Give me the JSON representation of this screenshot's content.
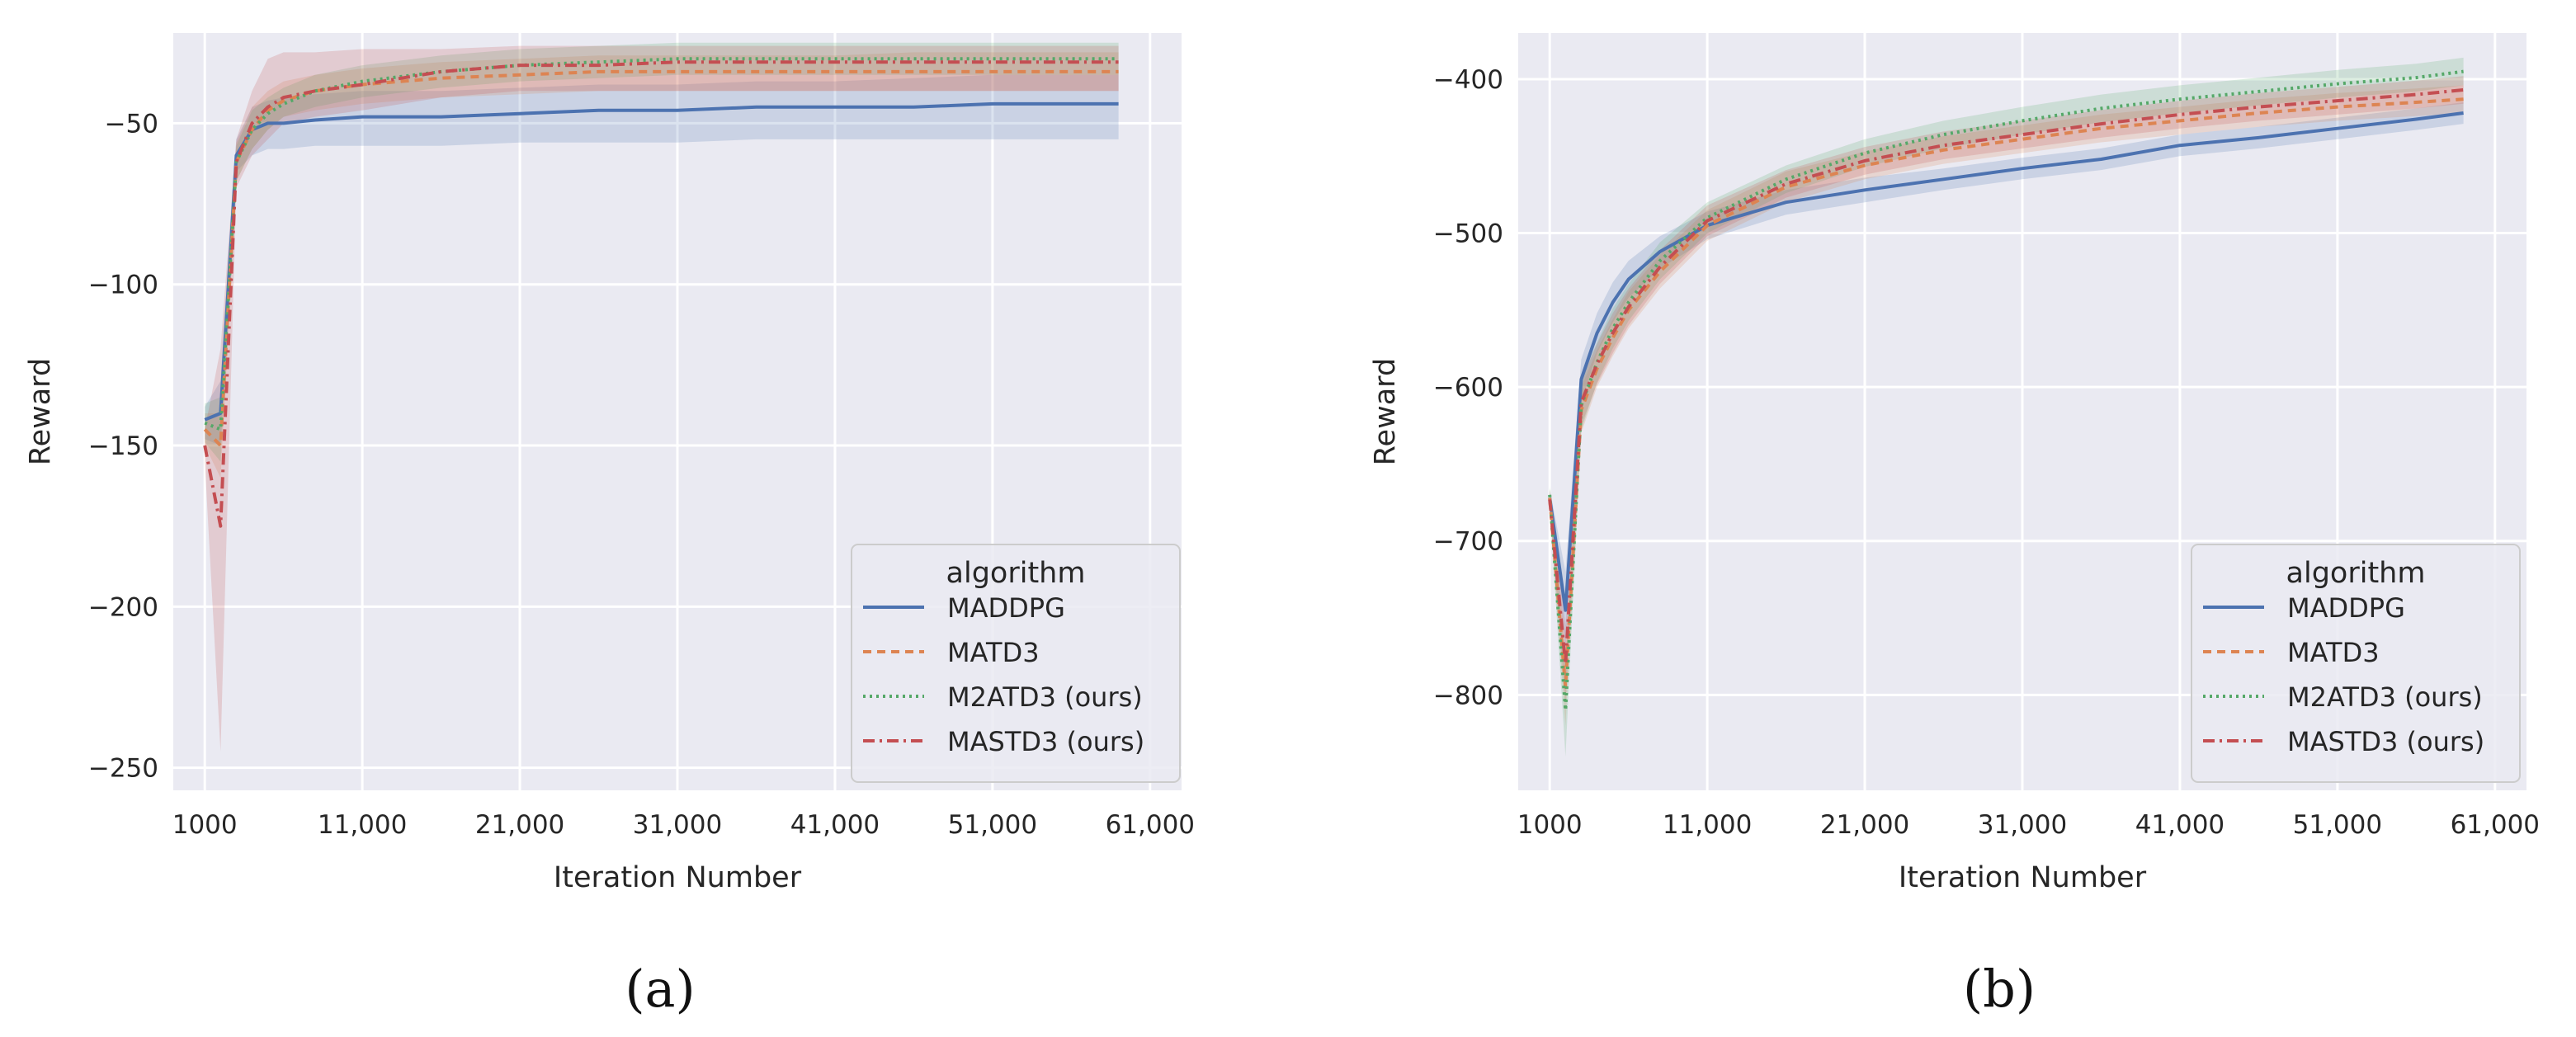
{
  "chart_data": [
    {
      "type": "line",
      "caption": "(a)",
      "xlabel": "Iteration Number",
      "ylabel": "Reward",
      "xlim": [
        -1000,
        63000
      ],
      "ylim": [
        -257,
        -22
      ],
      "xticks": [
        1000,
        11000,
        21000,
        31000,
        41000,
        51000,
        61000
      ],
      "xtick_labels": [
        "1000",
        "11,000",
        "21,000",
        "31,000",
        "41,000",
        "51,000",
        "61,000"
      ],
      "yticks": [
        -250,
        -200,
        -150,
        -100,
        -50
      ],
      "ytick_labels": [
        "−250",
        "−200",
        "−150",
        "−100",
        "−50"
      ],
      "legend": {
        "title": "algorithm",
        "position": "lower-right"
      },
      "series": [
        {
          "name": "MADDPG",
          "color": "#4c72b0",
          "dash": "solid",
          "x": [
            1000,
            2000,
            3000,
            4000,
            5000,
            6000,
            8000,
            11000,
            16000,
            21000,
            26000,
            31000,
            36000,
            41000,
            46000,
            51000,
            56000,
            59000
          ],
          "mean": [
            -142,
            -140,
            -60,
            -52,
            -50,
            -50,
            -49,
            -48,
            -48,
            -47,
            -46,
            -46,
            -45,
            -45,
            -45,
            -44,
            -44,
            -44
          ],
          "lower": [
            -148,
            -150,
            -65,
            -60,
            -58,
            -58,
            -57,
            -57,
            -57,
            -56,
            -56,
            -56,
            -55,
            -55,
            -55,
            -55,
            -55,
            -55
          ],
          "upper": [
            -138,
            -130,
            -55,
            -45,
            -43,
            -42,
            -41,
            -40,
            -40,
            -39,
            -38,
            -38,
            -37,
            -37,
            -36,
            -35,
            -35,
            -35
          ]
        },
        {
          "name": "MATD3",
          "color": "#dd8452",
          "dash": "10,7",
          "x": [
            1000,
            2000,
            3000,
            4000,
            5000,
            6000,
            8000,
            11000,
            16000,
            21000,
            26000,
            31000,
            36000,
            41000,
            46000,
            51000,
            56000,
            59000
          ],
          "mean": [
            -145,
            -150,
            -62,
            -52,
            -46,
            -43,
            -40,
            -38,
            -36,
            -35,
            -34,
            -34,
            -34,
            -34,
            -34,
            -34,
            -34,
            -34
          ],
          "lower": [
            -150,
            -160,
            -68,
            -58,
            -52,
            -48,
            -46,
            -44,
            -42,
            -41,
            -40,
            -40,
            -40,
            -40,
            -40,
            -40,
            -40,
            -40
          ],
          "upper": [
            -140,
            -140,
            -56,
            -45,
            -40,
            -37,
            -35,
            -33,
            -31,
            -30,
            -29,
            -29,
            -29,
            -29,
            -28,
            -28,
            -28,
            -28
          ]
        },
        {
          "name": "M2ATD3 (ours)",
          "color": "#55a868",
          "dash": "3,5",
          "x": [
            1000,
            2000,
            3000,
            4000,
            5000,
            6000,
            8000,
            11000,
            16000,
            21000,
            26000,
            31000,
            36000,
            41000,
            46000,
            51000,
            56000,
            59000
          ],
          "mean": [
            -143,
            -145,
            -62,
            -52,
            -47,
            -44,
            -40,
            -37,
            -34,
            -32,
            -31,
            -30,
            -30,
            -30,
            -30,
            -30,
            -30,
            -30
          ],
          "lower": [
            -149,
            -155,
            -68,
            -58,
            -52,
            -48,
            -45,
            -42,
            -39,
            -37,
            -36,
            -35,
            -35,
            -35,
            -35,
            -35,
            -35,
            -35
          ],
          "upper": [
            -137,
            -135,
            -57,
            -46,
            -42,
            -39,
            -35,
            -32,
            -29,
            -27,
            -26,
            -25,
            -25,
            -25,
            -25,
            -25,
            -25,
            -25
          ]
        },
        {
          "name": "MASTD3 (ours)",
          "color": "#c44e52",
          "dash": "14,6,3,6",
          "x": [
            1000,
            2000,
            3000,
            4000,
            5000,
            6000,
            8000,
            11000,
            16000,
            21000,
            26000,
            31000,
            36000,
            41000,
            46000,
            51000,
            56000,
            59000
          ],
          "mean": [
            -150,
            -175,
            -62,
            -50,
            -45,
            -42,
            -40,
            -38,
            -34,
            -32,
            -32,
            -31,
            -31,
            -31,
            -31,
            -31,
            -31,
            -31
          ],
          "lower": [
            -155,
            -245,
            -70,
            -60,
            -55,
            -50,
            -48,
            -46,
            -42,
            -40,
            -40,
            -40,
            -40,
            -40,
            -40,
            -40,
            -40,
            -40
          ],
          "upper": [
            -145,
            -120,
            -55,
            -40,
            -30,
            -28,
            -28,
            -27,
            -27,
            -26,
            -26,
            -26,
            -26,
            -26,
            -26,
            -26,
            -26,
            -26
          ]
        }
      ]
    },
    {
      "type": "line",
      "caption": "(b)",
      "xlabel": "Iteration Number",
      "ylabel": "Reward",
      "xlim": [
        -1000,
        63000
      ],
      "ylim": [
        -862,
        -370
      ],
      "xticks": [
        1000,
        11000,
        21000,
        31000,
        41000,
        51000,
        61000
      ],
      "xtick_labels": [
        "1000",
        "11,000",
        "21,000",
        "31,000",
        "41,000",
        "51,000",
        "61,000"
      ],
      "yticks": [
        -800,
        -700,
        -600,
        -500,
        -400
      ],
      "ytick_labels": [
        "−800",
        "−700",
        "−600",
        "−500",
        "−400"
      ],
      "legend": {
        "title": "algorithm",
        "position": "lower-right"
      },
      "series": [
        {
          "name": "MADDPG",
          "color": "#4c72b0",
          "dash": "solid",
          "x": [
            1000,
            2000,
            3000,
            4000,
            5000,
            6000,
            8000,
            11000,
            16000,
            21000,
            26000,
            31000,
            36000,
            41000,
            46000,
            51000,
            56000,
            59000
          ],
          "mean": [
            -672,
            -745,
            -595,
            -565,
            -545,
            -530,
            -512,
            -495,
            -480,
            -472,
            -465,
            -458,
            -452,
            -443,
            -438,
            -432,
            -426,
            -422
          ],
          "lower": [
            -678,
            -770,
            -610,
            -578,
            -558,
            -542,
            -523,
            -504,
            -488,
            -480,
            -472,
            -465,
            -459,
            -450,
            -445,
            -439,
            -433,
            -429
          ],
          "upper": [
            -666,
            -720,
            -582,
            -552,
            -532,
            -518,
            -502,
            -486,
            -472,
            -464,
            -458,
            -451,
            -445,
            -436,
            -431,
            -425,
            -419,
            -415
          ]
        },
        {
          "name": "MATD3",
          "color": "#dd8452",
          "dash": "10,7",
          "x": [
            1000,
            2000,
            3000,
            4000,
            5000,
            6000,
            8000,
            11000,
            16000,
            21000,
            26000,
            31000,
            36000,
            41000,
            46000,
            51000,
            56000,
            59000
          ],
          "mean": [
            -672,
            -795,
            -615,
            -588,
            -568,
            -550,
            -525,
            -495,
            -470,
            -456,
            -446,
            -439,
            -432,
            -427,
            -422,
            -418,
            -415,
            -413
          ],
          "lower": [
            -678,
            -820,
            -630,
            -600,
            -580,
            -562,
            -536,
            -505,
            -480,
            -465,
            -455,
            -448,
            -441,
            -436,
            -431,
            -427,
            -424,
            -422
          ],
          "upper": [
            -666,
            -770,
            -600,
            -576,
            -556,
            -538,
            -514,
            -485,
            -460,
            -447,
            -437,
            -430,
            -423,
            -418,
            -413,
            -409,
            -406,
            -404
          ]
        },
        {
          "name": "M2ATD3 (ours)",
          "color": "#55a868",
          "dash": "3,5",
          "x": [
            1000,
            2000,
            3000,
            4000,
            5000,
            6000,
            8000,
            11000,
            16000,
            21000,
            26000,
            31000,
            36000,
            41000,
            46000,
            51000,
            56000,
            59000
          ],
          "mean": [
            -670,
            -810,
            -612,
            -584,
            -562,
            -545,
            -518,
            -490,
            -465,
            -448,
            -436,
            -427,
            -419,
            -413,
            -408,
            -403,
            -399,
            -395
          ],
          "lower": [
            -676,
            -840,
            -628,
            -597,
            -575,
            -557,
            -530,
            -500,
            -474,
            -457,
            -445,
            -436,
            -428,
            -422,
            -417,
            -412,
            -408,
            -404
          ],
          "upper": [
            -664,
            -780,
            -596,
            -571,
            -549,
            -533,
            -506,
            -480,
            -456,
            -439,
            -427,
            -418,
            -410,
            -404,
            -399,
            -394,
            -390,
            -386
          ]
        },
        {
          "name": "MASTD3 (ours)",
          "color": "#c44e52",
          "dash": "14,6,3,6",
          "x": [
            1000,
            2000,
            3000,
            4000,
            5000,
            6000,
            8000,
            11000,
            16000,
            21000,
            26000,
            31000,
            36000,
            41000,
            46000,
            51000,
            56000,
            59000
          ],
          "mean": [
            -673,
            -780,
            -610,
            -585,
            -565,
            -548,
            -522,
            -492,
            -468,
            -453,
            -443,
            -436,
            -429,
            -423,
            -418,
            -414,
            -410,
            -407
          ],
          "lower": [
            -679,
            -805,
            -625,
            -598,
            -578,
            -560,
            -533,
            -502,
            -477,
            -462,
            -452,
            -445,
            -438,
            -432,
            -427,
            -423,
            -419,
            -416
          ],
          "upper": [
            -667,
            -755,
            -595,
            -572,
            -552,
            -536,
            -511,
            -482,
            -459,
            -444,
            -434,
            -427,
            -420,
            -414,
            -409,
            -405,
            -401,
            -398
          ]
        }
      ]
    }
  ]
}
